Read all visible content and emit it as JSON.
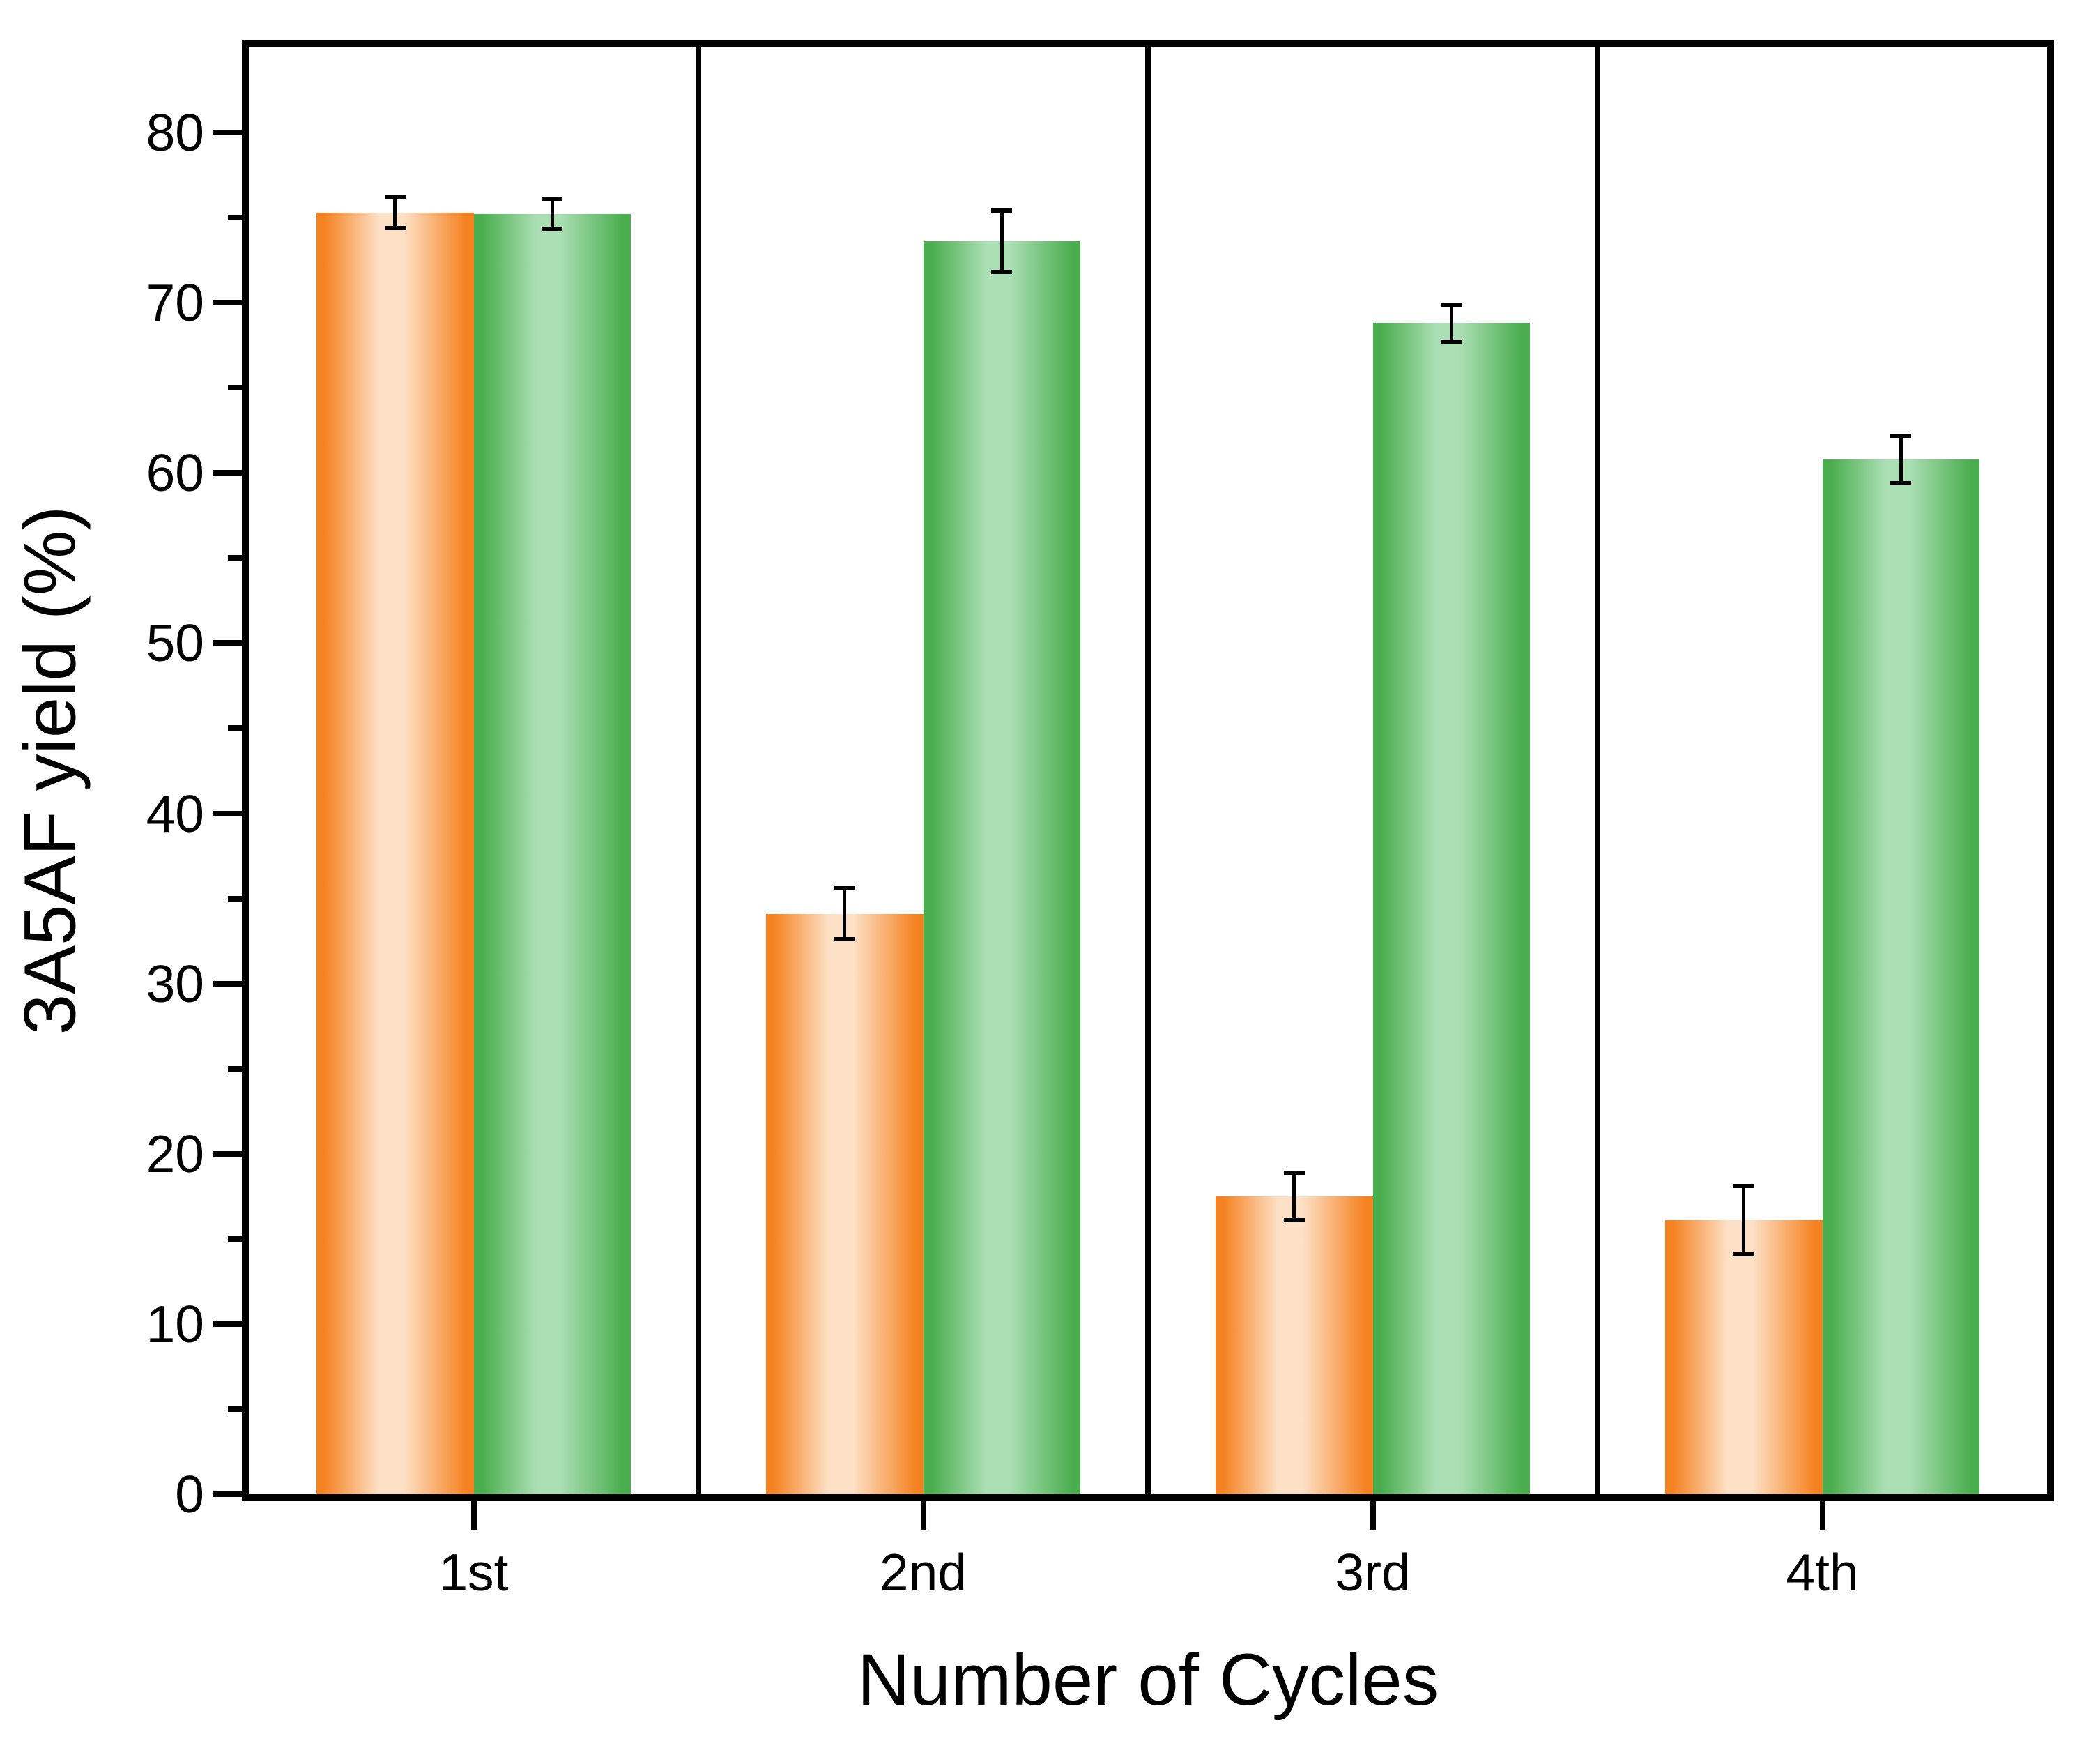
{
  "figure": {
    "background": "#FFFFFF",
    "axis_color": "#000000"
  },
  "chart_data": {
    "type": "bar",
    "title": "",
    "xlabel": "Number of Cycles",
    "ylabel": "3A5AF yield (%)",
    "categories": [
      "1st",
      "2nd",
      "3rd",
      "4th"
    ],
    "series": [
      {
        "name": "orange-series",
        "values": [
          75.3,
          34.1,
          17.5,
          16.1
        ],
        "errors": [
          0.9,
          1.5,
          1.4,
          2.0
        ],
        "edge_color": "#F58221",
        "center_color": "#FDE1C7"
      },
      {
        "name": "green-series",
        "values": [
          75.2,
          73.6,
          68.8,
          60.8
        ],
        "errors": [
          0.9,
          1.8,
          1.1,
          1.4
        ],
        "edge_color": "#4AAD4E",
        "center_color": "#ABDFB4"
      }
    ],
    "ylim": [
      0,
      85
    ],
    "yticks_major": [
      0,
      10,
      20,
      30,
      40,
      50,
      60,
      70,
      80
    ],
    "yticks_minor": [
      5,
      15,
      25,
      35,
      45,
      55,
      65,
      75
    ],
    "grid": false,
    "legend": null,
    "panel_dividers": true,
    "error_bar_color": "#000000"
  }
}
